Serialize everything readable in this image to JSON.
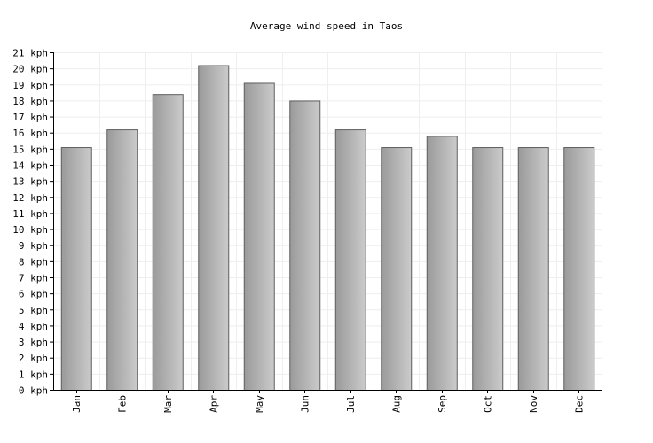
{
  "chart_data": {
    "type": "bar",
    "title": "Average wind speed in Taos",
    "xlabel": "",
    "ylabel": "",
    "unit": "kph",
    "categories": [
      "Jan",
      "Feb",
      "Mar",
      "Apr",
      "May",
      "Jun",
      "Jul",
      "Aug",
      "Sep",
      "Oct",
      "Nov",
      "Dec"
    ],
    "values": [
      15.1,
      16.2,
      18.4,
      20.2,
      19.1,
      18.0,
      16.2,
      15.1,
      15.8,
      15.1,
      15.1,
      15.1
    ],
    "ylim": [
      0,
      21
    ],
    "yticks": [
      "0 kph",
      "1 kph",
      "2 kph",
      "3 kph",
      "4 kph",
      "5 kph",
      "6 kph",
      "7 kph",
      "8 kph",
      "9 kph",
      "10 kph",
      "11 kph",
      "12 kph",
      "13 kph",
      "14 kph",
      "15 kph",
      "16 kph",
      "17 kph",
      "18 kph",
      "19 kph",
      "20 kph",
      "21 kph"
    ],
    "grid": true,
    "legend": "none",
    "colors": {
      "bar_dark": "#9a9a9a",
      "bar_light": "#cbcbcb",
      "bar_stroke": "#5e5e5e",
      "grid": "#eeeeee",
      "axis": "#000000",
      "text": "#000000"
    }
  }
}
